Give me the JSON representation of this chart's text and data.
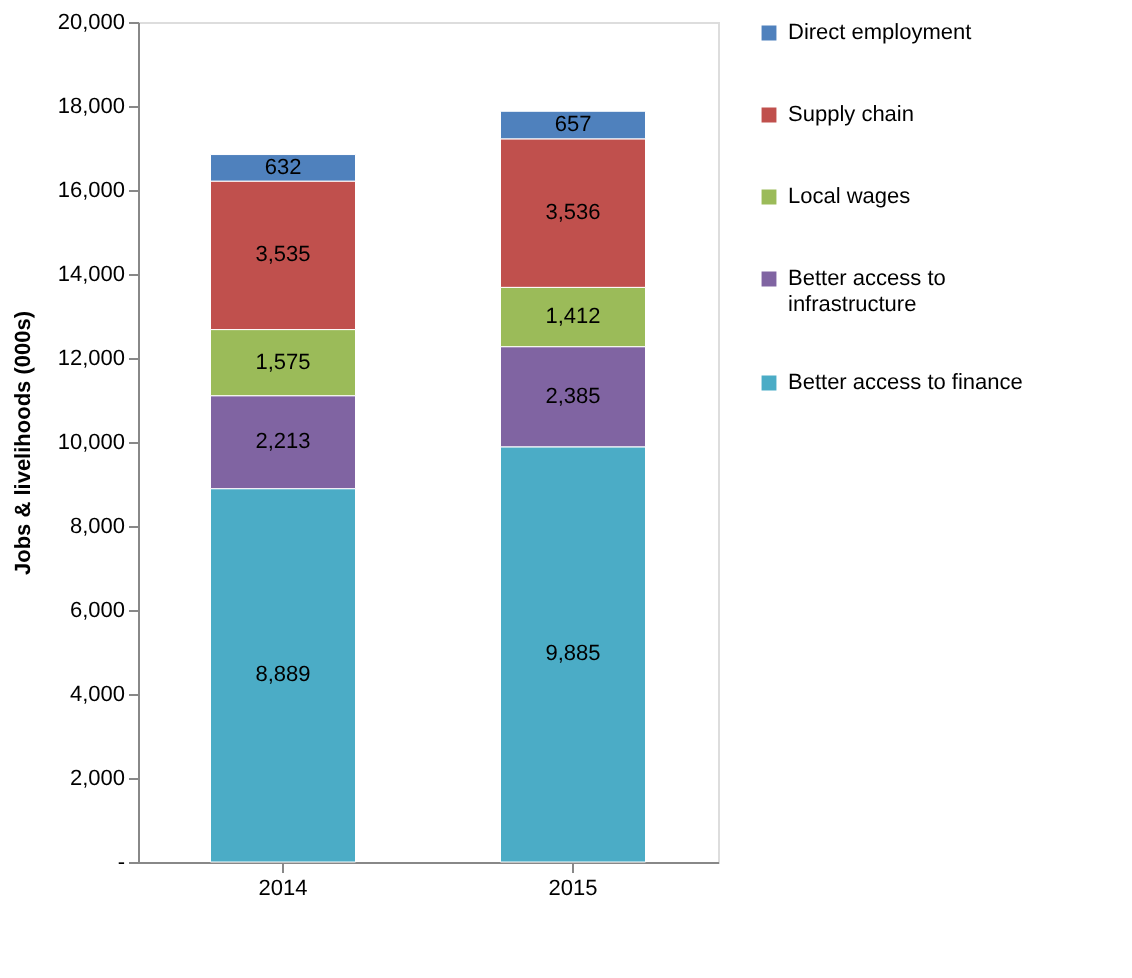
{
  "chart_data": {
    "type": "bar",
    "stacked": true,
    "ylabel": "Jobs & livelihoods (000s)",
    "categories": [
      "2014",
      "2015"
    ],
    "series": [
      {
        "name": "Better access to finance",
        "color": "#4bacc6",
        "values": [
          8889,
          9885
        ],
        "value_labels": [
          "8,889",
          "9,885"
        ]
      },
      {
        "name": "Better access to infrastructure",
        "color": "#8064a2",
        "values": [
          2213,
          2385
        ],
        "value_labels": [
          "2,213",
          "2,385"
        ]
      },
      {
        "name": "Local wages",
        "color": "#9bbb59",
        "values": [
          1575,
          1412
        ],
        "value_labels": [
          "1,575",
          "1,412"
        ]
      },
      {
        "name": "Supply chain",
        "color": "#c0504d",
        "values": [
          3535,
          3536
        ],
        "value_labels": [
          "3,535",
          "3,536"
        ]
      },
      {
        "name": "Direct employment",
        "color": "#4f81bd",
        "values": [
          632,
          657
        ],
        "value_labels": [
          "632",
          "657"
        ]
      }
    ],
    "ylim": [
      0,
      20000
    ],
    "yticks": [
      {
        "value": 0,
        "label": "-"
      },
      {
        "value": 2000,
        "label": "2,000"
      },
      {
        "value": 4000,
        "label": "4,000"
      },
      {
        "value": 6000,
        "label": "6,000"
      },
      {
        "value": 8000,
        "label": "8,000"
      },
      {
        "value": 10000,
        "label": "10,000"
      },
      {
        "value": 12000,
        "label": "12,000"
      },
      {
        "value": 14000,
        "label": "14,000"
      },
      {
        "value": 16000,
        "label": "16,000"
      },
      {
        "value": 18000,
        "label": "18,000"
      },
      {
        "value": 20000,
        "label": "20,000"
      }
    ],
    "legend": "right",
    "grid": false
  }
}
